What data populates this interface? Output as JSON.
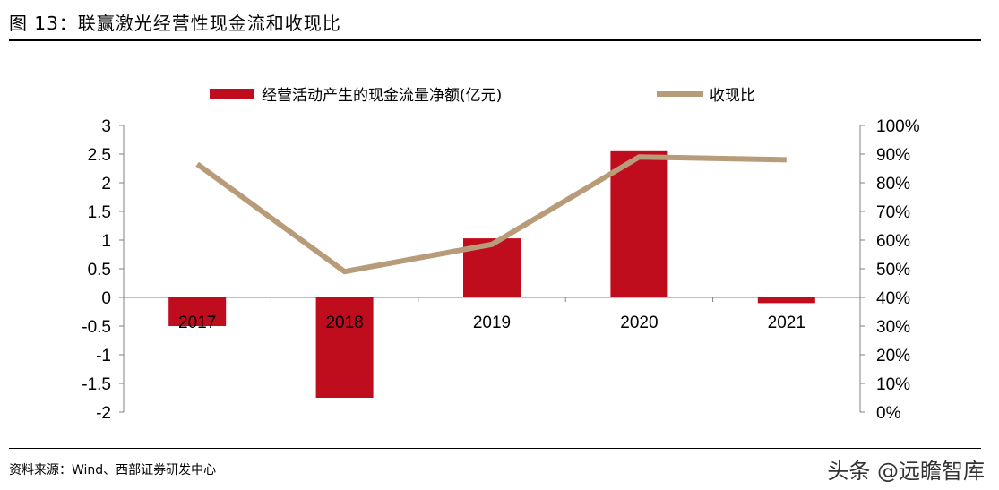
{
  "header": {
    "title": "图 13：联赢激光经营性现金流和收现比"
  },
  "footer": {
    "source": "资料来源：Wind、西部证券研发中心",
    "watermark": "头条 @远瞻智库"
  },
  "colors": {
    "bar": "#c00d1e",
    "line": "#b89b78",
    "axis": "#808080"
  },
  "chart_data": {
    "type": "bar",
    "categories": [
      "2017",
      "2018",
      "2019",
      "2020",
      "2021"
    ],
    "series": [
      {
        "name": "经营活动产生的现金流量净额(亿元)",
        "kind": "bar",
        "axis": "left",
        "values": [
          -0.5,
          -1.75,
          1.03,
          2.55,
          -0.1
        ]
      },
      {
        "name": "收现比",
        "kind": "line",
        "axis": "right",
        "values": [
          0.865,
          0.49,
          0.585,
          0.89,
          0.88
        ]
      }
    ],
    "left_axis": {
      "min": -2,
      "max": 3,
      "step": 0.5,
      "ticks": [
        "3",
        "2.5",
        "2",
        "1.5",
        "1",
        "0.5",
        "0",
        "-0.5",
        "-1",
        "-1.5",
        "-2"
      ]
    },
    "right_axis": {
      "min": 0,
      "max": 1,
      "step": 0.1,
      "ticks": [
        "100%",
        "90%",
        "80%",
        "70%",
        "60%",
        "50%",
        "40%",
        "30%",
        "20%",
        "10%",
        "0%"
      ]
    },
    "legend": "top-center"
  }
}
